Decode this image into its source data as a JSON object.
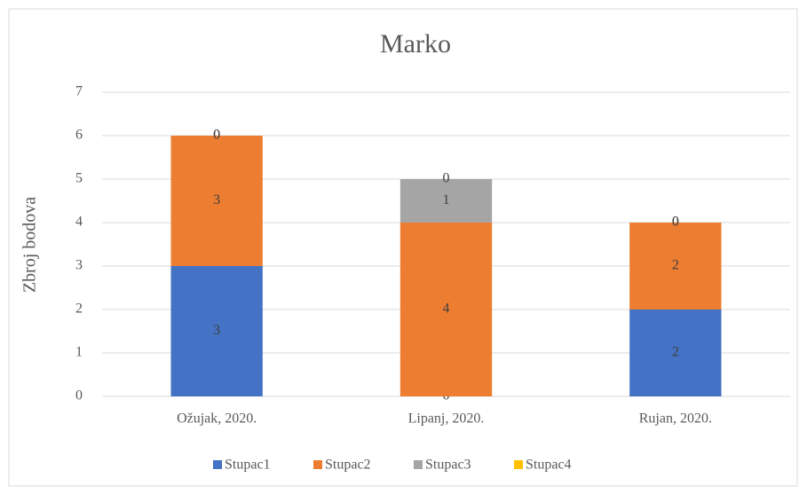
{
  "chart_data": {
    "type": "bar",
    "stacked": true,
    "title": "Marko",
    "ylabel": "Zbroj bodova",
    "categories": [
      "Ožujak, 2020.",
      "Lipanj, 2020.",
      "Rujan, 2020."
    ],
    "series": [
      {
        "name": "Stupac1",
        "color": "#4472c4",
        "values": [
          3,
          0,
          2
        ]
      },
      {
        "name": "Stupac2",
        "color": "#ed7d31",
        "values": [
          3,
          4,
          2
        ]
      },
      {
        "name": "Stupac3",
        "color": "#a5a5a5",
        "values": [
          0,
          1,
          0
        ]
      },
      {
        "name": "Stupac4",
        "color": "#ffc000",
        "values": [
          0,
          0,
          0
        ]
      }
    ],
    "ylim": [
      0,
      7
    ],
    "yticks": [
      0,
      1,
      2,
      3,
      4,
      5,
      6,
      7
    ],
    "grid": true,
    "legend": "bottom"
  }
}
